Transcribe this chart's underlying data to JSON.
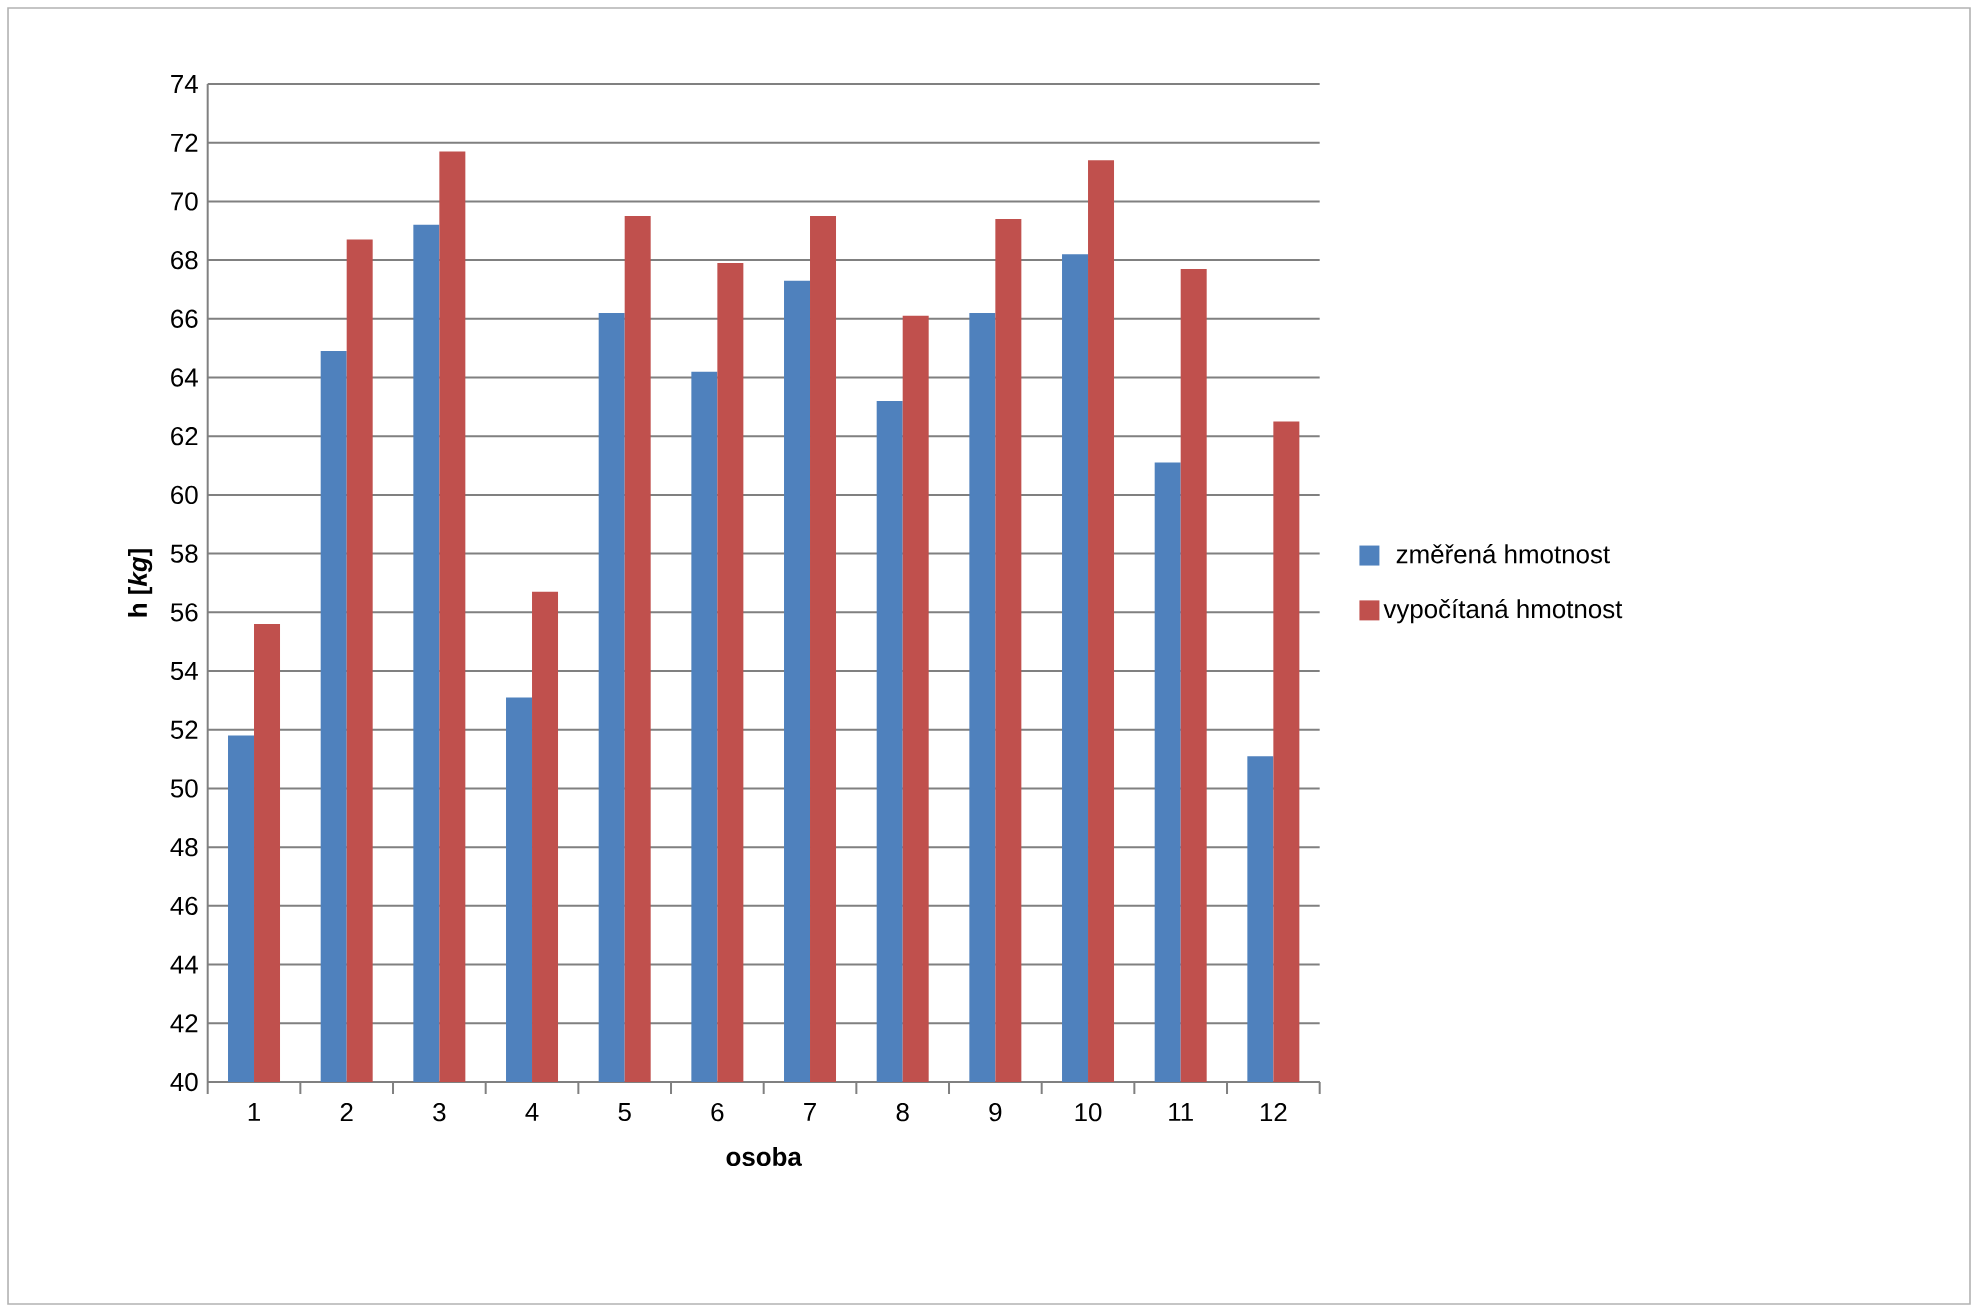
{
  "chart_data": {
    "type": "bar",
    "xlabel": "osoba",
    "ylabel": "h [*kg*]",
    "categories": [
      "1",
      "2",
      "3",
      "4",
      "5",
      "6",
      "7",
      "8",
      "9",
      "10",
      "11",
      "12"
    ],
    "series": [
      {
        "name": "změřená hmotnost",
        "color": "#4f81bd",
        "values": [
          51.8,
          64.9,
          69.2,
          53.1,
          66.2,
          64.2,
          67.3,
          63.2,
          66.2,
          68.2,
          61.1,
          51.1
        ]
      },
      {
        "name": "vypočítaná hmotnost",
        "color": "#c0504d",
        "values": [
          55.6,
          68.7,
          71.7,
          56.7,
          69.5,
          67.9,
          69.5,
          66.1,
          69.4,
          71.4,
          67.7,
          62.5
        ]
      }
    ],
    "ylim": [
      40,
      74
    ],
    "yticks": [
      40,
      42,
      44,
      46,
      48,
      50,
      52,
      54,
      56,
      58,
      60,
      62,
      64,
      66,
      68,
      70,
      72,
      74
    ],
    "grid": "y",
    "legend": "right"
  }
}
